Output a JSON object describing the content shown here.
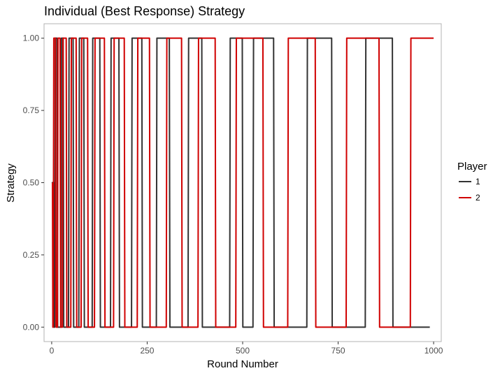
{
  "chart_data": {
    "type": "line",
    "title": "Individual (Best Response) Strategy",
    "xlabel": "Round Number",
    "ylabel": "Strategy",
    "xlim": [
      -20,
      1020
    ],
    "ylim": [
      -0.05,
      1.05
    ],
    "x_ticks": [
      0,
      250,
      500,
      750,
      1000
    ],
    "x_tick_labels": [
      "0",
      "250",
      "500",
      "750",
      "1000"
    ],
    "y_ticks": [
      0,
      0.25,
      0.5,
      0.75,
      1.0
    ],
    "y_tick_labels": [
      "0.00",
      "0.25",
      "0.50",
      "0.75",
      "1.00"
    ],
    "grid": false,
    "legend": {
      "title": "Player",
      "position": "right"
    },
    "series": [
      {
        "name": "1",
        "color": "#333333",
        "start": [
          [
            0,
            0.5
          ],
          [
            6,
            0.5
          ]
        ],
        "initial": 0,
        "switch_x": [
          8,
          14,
          24,
          30,
          44,
          56,
          71,
          84,
          106,
          126,
          154,
          176,
          209,
          236,
          274,
          308,
          357,
          393,
          466,
          499,
          527,
          581,
          668,
          733,
          821,
          892
        ],
        "end_x": 990
      },
      {
        "name": "2",
        "color": "#d00000",
        "start": [
          [
            2,
            0.5
          ],
          [
            3,
            0
          ]
        ],
        "initial": 0,
        "switch_x": [
          4,
          10,
          15,
          22,
          28,
          38,
          50,
          64,
          77,
          94,
          112,
          138,
          162,
          190,
          224,
          256,
          300,
          340,
          383,
          428,
          482,
          553,
          618,
          690,
          771,
          857,
          939
        ],
        "end_x": 1000
      }
    ]
  }
}
